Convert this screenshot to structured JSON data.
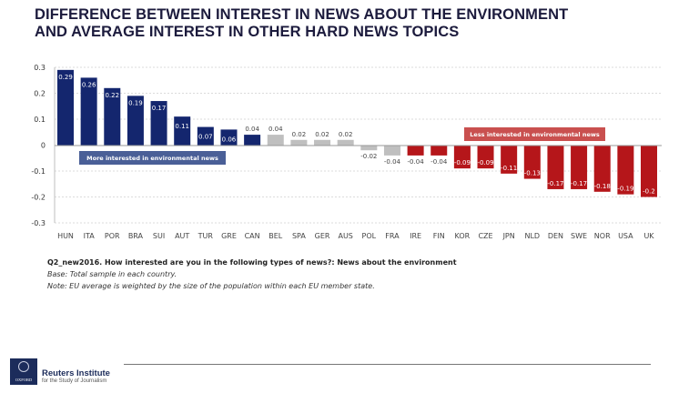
{
  "header": {
    "title_line1": "DIFFERENCE BETWEEN INTEREST IN NEWS ABOUT THE ENVIRONMENT",
    "title_line2": "AND AVERAGE INTEREST IN OTHER HARD NEWS TOPICS"
  },
  "colors": {
    "positive": "#14266e",
    "neutral": "#bfbfbf",
    "negative": "#b5161a",
    "more_box": "#4a5f97",
    "less_box": "#c9504f",
    "title": "#1c1b3d"
  },
  "chart_data": {
    "type": "bar",
    "title": "DIFFERENCE BETWEEN INTEREST IN NEWS ABOUT THE ENVIRONMENT AND AVERAGE INTEREST IN OTHER HARD NEWS TOPICS",
    "xlabel": "",
    "ylabel": "",
    "ylim": [
      -0.3,
      0.3
    ],
    "yticks": [
      "0.3",
      "0.2",
      "0.1",
      "0",
      "-0.1",
      "-0.2",
      "-0.3"
    ],
    "ytick_values": [
      0.3,
      0.2,
      0.1,
      0,
      -0.1,
      -0.2,
      -0.3
    ],
    "grid": true,
    "categories": [
      "HUN",
      "ITA",
      "POR",
      "BRA",
      "SUI",
      "AUT",
      "TUR",
      "GRE",
      "CAN",
      "BEL",
      "SPA",
      "GER",
      "AUS",
      "POL",
      "FRA",
      "IRE",
      "FIN",
      "KOR",
      "CZE",
      "JPN",
      "NLD",
      "DEN",
      "SWE",
      "NOR",
      "USA",
      "UK"
    ],
    "values": [
      0.29,
      0.26,
      0.22,
      0.19,
      0.17,
      0.11,
      0.07,
      0.06,
      0.04,
      0.04,
      0.02,
      0.02,
      0.02,
      -0.02,
      -0.04,
      -0.04,
      -0.04,
      -0.09,
      -0.09,
      -0.11,
      -0.13,
      -0.17,
      -0.17,
      -0.18,
      -0.19,
      -0.2
    ],
    "data_labels": [
      "0.29",
      "0.26",
      "0.22",
      "0.19",
      "0.17",
      "0.11",
      "0.07",
      "0.06",
      "0.04",
      "0.04",
      "0.02",
      "0.02",
      "0.02",
      "-0.02",
      "-0.04",
      "-0.04",
      "-0.04",
      "-0.09",
      "-0.09",
      "-0.11",
      "-0.13",
      "-0.17",
      "-0.17",
      "-0.18",
      "-0.19",
      "-0.2"
    ],
    "bar_groups": [
      "positive",
      "positive",
      "positive",
      "positive",
      "positive",
      "positive",
      "positive",
      "positive",
      "positive",
      "neutral",
      "neutral",
      "neutral",
      "neutral",
      "neutral",
      "neutral",
      "negative",
      "negative",
      "negative",
      "negative",
      "negative",
      "negative",
      "negative",
      "negative",
      "negative",
      "negative",
      "negative"
    ],
    "annotations": [
      {
        "text": "More interested in environmental news",
        "group": "positive"
      },
      {
        "text": "Less interested in environmental news",
        "group": "negative"
      }
    ]
  },
  "notes": {
    "question": "Q2_new2016. How interested are you in the following types of news?: News about the environment",
    "base": "Base: Total sample in each country.",
    "note": "Note: EU average is weighted by the size of the population within each EU member state."
  },
  "footer": {
    "logo_text": "OXFORD",
    "org_name": "Reuters Institute",
    "org_sub": "for the Study of Journalism"
  }
}
